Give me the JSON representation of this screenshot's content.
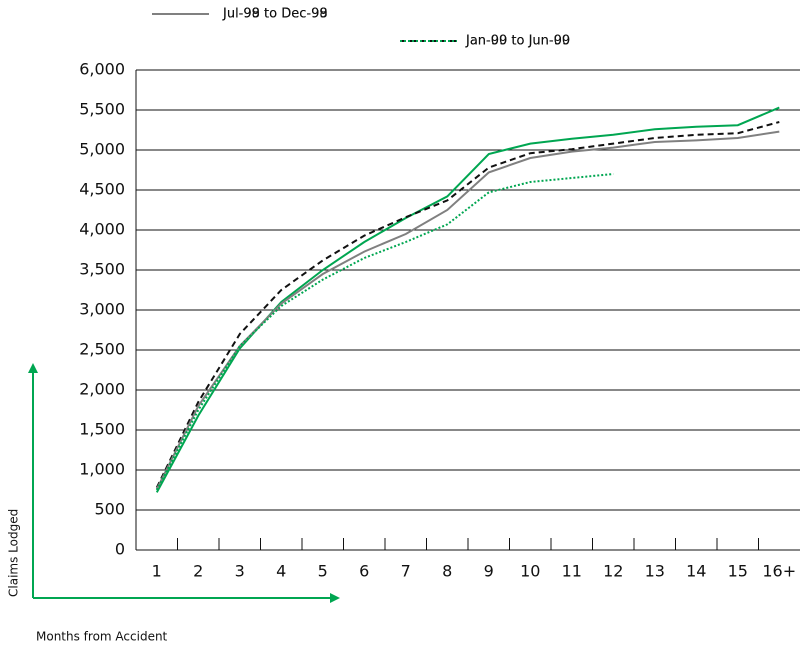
{
  "chart_data": {
    "type": "line",
    "x_label": "Months from Accident",
    "y_label": "Claims Lodged",
    "categories": [
      "1",
      "2",
      "3",
      "4",
      "5",
      "6",
      "7",
      "8",
      "9",
      "10",
      "11",
      "12",
      "13",
      "14",
      "15",
      "16+"
    ],
    "series": [
      {
        "name": "Jul-98 to Dec-98",
        "color": "#00a651",
        "style": "solid",
        "values": [
          720,
          1680,
          2520,
          3100,
          3500,
          3850,
          4150,
          4420,
          4950,
          5080,
          5140,
          5190,
          5260,
          5290,
          5310,
          5530
        ]
      },
      {
        "name": "Jan-99 to Jun-99",
        "color": "#111111",
        "style": "dashed",
        "values": [
          780,
          1850,
          2700,
          3250,
          3620,
          3930,
          4160,
          4370,
          4780,
          4960,
          5010,
          5080,
          5150,
          5190,
          5210,
          5350
        ]
      },
      {
        "name": "Jul-99 to Dec-99",
        "color": "#808080",
        "style": "solid",
        "values": [
          760,
          1800,
          2550,
          3080,
          3450,
          3730,
          3950,
          4250,
          4720,
          4900,
          4980,
          5030,
          5100,
          5120,
          5150,
          5230
        ]
      },
      {
        "name": "Jan-00 to Jun-00",
        "color": "#00a651",
        "style": "dotted",
        "values": [
          750,
          1750,
          2550,
          3050,
          3380,
          3650,
          3850,
          4070,
          4470,
          4600,
          4650,
          4700,
          null,
          null,
          null,
          null
        ]
      }
    ],
    "ylim": [
      0,
      6000
    ],
    "yticks": [
      0,
      500,
      {
        "value": 1000,
        "label": "1,000"
      },
      {
        "value": 1500,
        "label": "1,500"
      },
      {
        "value": 2000,
        "label": "2,000"
      },
      {
        "value": 2500,
        "label": "2,500"
      },
      {
        "value": 3000,
        "label": "3,000"
      },
      {
        "value": 3500,
        "label": "3,500"
      },
      {
        "value": 4000,
        "label": "4,000"
      },
      {
        "value": 4500,
        "label": "4,500"
      },
      {
        "value": 5000,
        "label": "5,000"
      },
      {
        "value": 5500,
        "label": "5,500"
      },
      {
        "value": 6000,
        "label": "6,000"
      }
    ],
    "grid": true
  }
}
